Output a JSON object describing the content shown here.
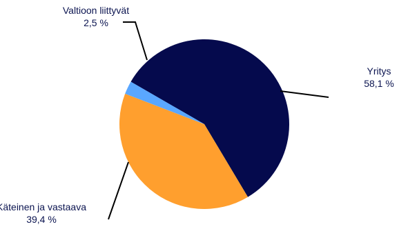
{
  "chart_data": {
    "type": "pie",
    "title": "",
    "slices": [
      {
        "label": "Yritys",
        "value_label": "58,1 %",
        "value": 58.1,
        "color": "#050a4d"
      },
      {
        "label": "Käteinen ja vastaava",
        "value_label": "39,4 %",
        "value": 39.4,
        "color": "#ff9f2e"
      },
      {
        "label": "Valtioon liittyvät",
        "value_label": "2,5 %",
        "value": 2.5,
        "color": "#5aa7ff"
      }
    ]
  }
}
